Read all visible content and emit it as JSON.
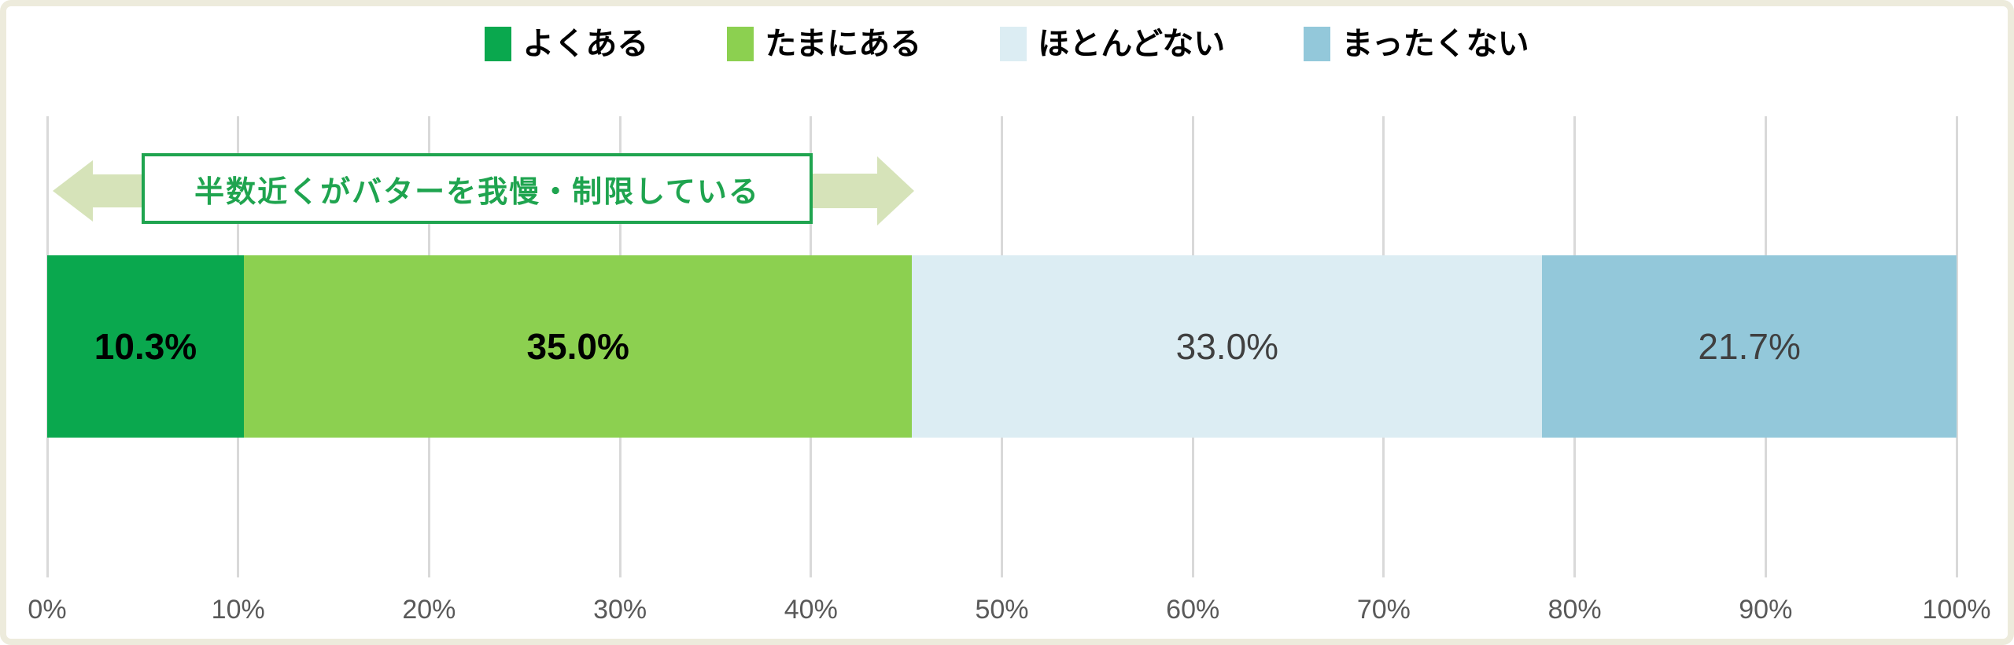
{
  "frame": {
    "background": "#FFFFFF",
    "border_color": "#EDEBDC"
  },
  "annotation": {
    "text": "半数近くがバターを我慢・制限している",
    "text_color": "#1FA44F",
    "border_color": "#1FA44F",
    "arrow_color": "#D6E3B9"
  },
  "chart_data": {
    "type": "bar",
    "orientation": "horizontal",
    "stacked": true,
    "title": "",
    "xlabel": "",
    "ylabel": "",
    "xlim": [
      0,
      100
    ],
    "grid": true,
    "legend_position": "top",
    "categories": [
      ""
    ],
    "series": [
      {
        "name": "よくある",
        "value": 10.3,
        "label": "10.3%",
        "color": "#0AA84E",
        "label_color": "#000000",
        "label_weight": "bold"
      },
      {
        "name": "たまにある",
        "value": 35.0,
        "label": "35.0%",
        "color": "#8CD050",
        "label_color": "#000000",
        "label_weight": "bold"
      },
      {
        "name": "ほとんどない",
        "value": 33.0,
        "label": "33.0%",
        "color": "#DCEDF3",
        "label_color": "#404040",
        "label_weight": "normal"
      },
      {
        "name": "まったくない",
        "value": 21.7,
        "label": "21.7%",
        "color": "#93C8DA",
        "label_color": "#404040",
        "label_weight": "normal"
      }
    ],
    "x_ticks": [
      "0%",
      "10%",
      "20%",
      "30%",
      "40%",
      "50%",
      "60%",
      "70%",
      "80%",
      "90%",
      "100%"
    ],
    "annotation": "半数近くがバターを我慢・制限している",
    "colors": {
      "gridline": "#D9D9D9",
      "axis_text": "#595959"
    }
  }
}
